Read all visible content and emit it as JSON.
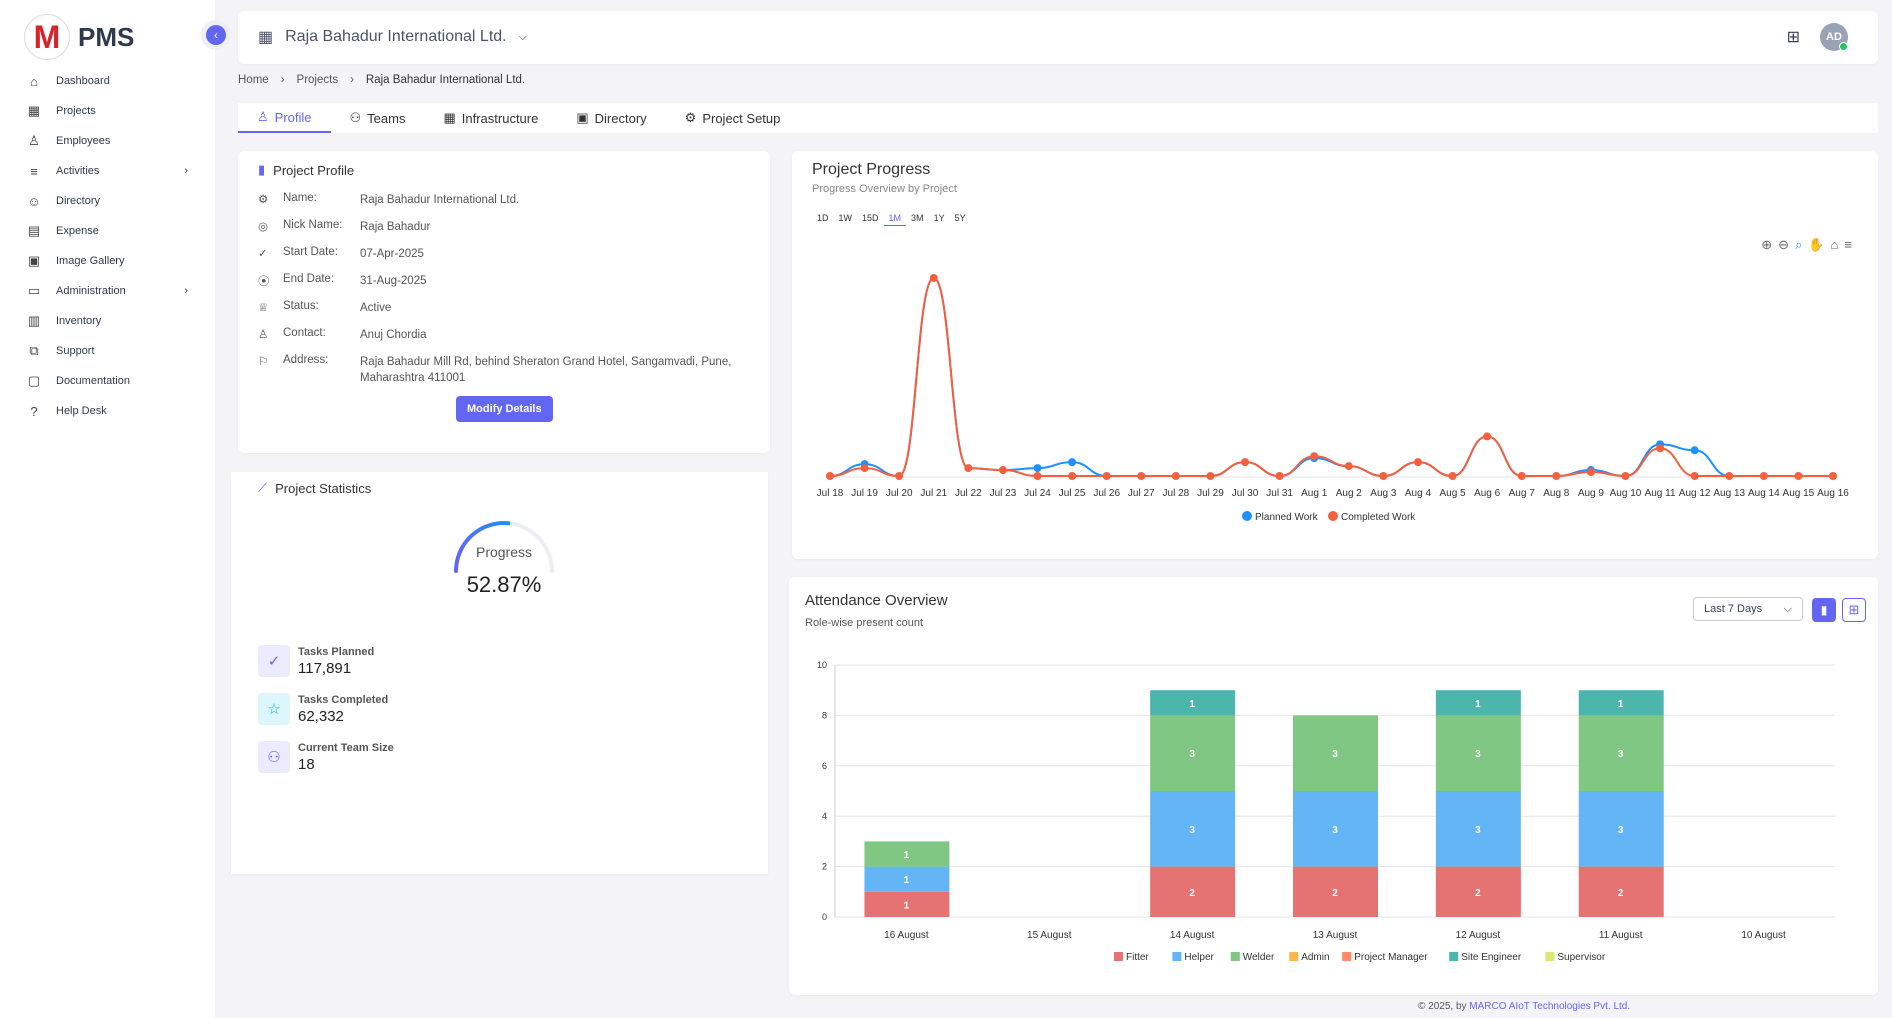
{
  "app": {
    "logo_letter": "M",
    "name": "PMS"
  },
  "sidebar": {
    "items": [
      {
        "label": "Dashboard",
        "icon": "⌂",
        "name": "home"
      },
      {
        "label": "Projects",
        "icon": "▦",
        "name": "building"
      },
      {
        "label": "Employees",
        "icon": "♙",
        "name": "user"
      },
      {
        "label": "Activities",
        "icon": "≡",
        "name": "list",
        "chevron": true
      },
      {
        "label": "Directory",
        "icon": "☺",
        "name": "contacts"
      },
      {
        "label": "Expense",
        "icon": "▤",
        "name": "receipt"
      },
      {
        "label": "Image Gallery",
        "icon": "▣",
        "name": "image"
      },
      {
        "label": "Administration",
        "icon": "▭",
        "name": "archive",
        "chevron": true
      },
      {
        "label": "Inventory",
        "icon": "▥",
        "name": "store"
      },
      {
        "label": "Support",
        "icon": "⧉",
        "name": "support"
      },
      {
        "label": "Documentation",
        "icon": "▢",
        "name": "book"
      },
      {
        "label": "Help Desk",
        "icon": "?",
        "name": "help"
      }
    ]
  },
  "header": {
    "project": "Raja Bahadur International Ltd.",
    "avatar": "AD"
  },
  "breadcrumb": [
    "Home",
    "Projects",
    "Raja Bahadur International Ltd."
  ],
  "tabs": [
    {
      "label": "Profile",
      "icon": "♙",
      "active": true
    },
    {
      "label": "Teams",
      "icon": "⚇"
    },
    {
      "label": "Infrastructure",
      "icon": "▦"
    },
    {
      "label": "Directory",
      "icon": "▣"
    },
    {
      "label": "Project Setup",
      "icon": "⚙"
    }
  ],
  "profile": {
    "title": "Project Profile",
    "rows": [
      {
        "label": "Name:",
        "value": "Raja Bahadur International Ltd.",
        "icon": "⚙"
      },
      {
        "label": "Nick Name:",
        "value": "Raja Bahadur",
        "icon": "◎"
      },
      {
        "label": "Start Date:",
        "value": "07-Apr-2025",
        "icon": "✓"
      },
      {
        "label": "End Date:",
        "value": "31-Aug-2025",
        "icon": "⦿"
      },
      {
        "label": "Status:",
        "value": "Active",
        "icon": "♕"
      },
      {
        "label": "Contact:",
        "value": "Anuj Chordia",
        "icon": "♙"
      },
      {
        "label": "Address:",
        "value": "Raja Bahadur Mill Rd, behind Sheraton Grand Hotel, Sangamvadi, Pune, Maharashtra 411001",
        "icon": "⚐"
      }
    ],
    "button": "Modify Details"
  },
  "statistics": {
    "title": "Project Statistics",
    "gauge_label": "Progress",
    "progress_percent": 52.87,
    "progress_text": "52.87%",
    "items": [
      {
        "label": "Tasks Planned",
        "value": "117,891",
        "icon": "✓",
        "bg": "#ebebfd",
        "fg": "#6366f1"
      },
      {
        "label": "Tasks Completed",
        "value": "62,332",
        "icon": "☆",
        "bg": "#dcf6fb",
        "fg": "#06b6d4"
      },
      {
        "label": "Current Team Size",
        "value": "18",
        "icon": "⚇",
        "bg": "#ebebfd",
        "fg": "#6366f1"
      }
    ]
  },
  "progress": {
    "title": "Project Progress",
    "subtitle": "Progress Overview by Project",
    "ranges": [
      "1D",
      "1W",
      "15D",
      "1M",
      "3M",
      "1Y",
      "5Y"
    ],
    "active_range": "1M"
  },
  "attendance": {
    "title": "Attendance Overview",
    "subtitle": "Role-wise present count",
    "filter": "Last 7 Days"
  },
  "footer": {
    "prefix": "© 2025, by ",
    "company": "MARCO AIoT Technologies Pvt. Ltd."
  },
  "chart_data": [
    {
      "type": "line",
      "x": [
        "Jul 18",
        "Jul 19",
        "Jul 20",
        "Jul 21",
        "Jul 22",
        "Jul 23",
        "Jul 24",
        "Jul 25",
        "Jul 26",
        "Jul 27",
        "Jul 28",
        "Jul 29",
        "Jul 30",
        "Jul 31",
        "Aug 1",
        "Aug 2",
        "Aug 3",
        "Aug 4",
        "Aug 5",
        "Aug 6",
        "Aug 7",
        "Aug 8",
        "Aug 9",
        "Aug 10",
        "Aug 11",
        "Aug 12",
        "Aug 13",
        "Aug 14",
        "Aug 15",
        "Aug 16"
      ],
      "series": [
        {
          "name": "Planned Work",
          "color": "#1e90ff",
          "values": [
            0,
            6,
            0,
            100,
            4,
            3,
            4,
            7,
            0,
            0,
            0,
            0,
            7,
            0,
            9,
            5,
            0,
            7,
            0,
            20,
            0,
            0,
            3,
            0,
            16,
            13,
            0,
            0,
            0,
            0
          ]
        },
        {
          "name": "Completed Work",
          "color": "#f4603e",
          "values": [
            0,
            4,
            0,
            100,
            4,
            3,
            0,
            0,
            0,
            0,
            0,
            0,
            7,
            0,
            10,
            5,
            0,
            7,
            0,
            20,
            0,
            0,
            2,
            0,
            14,
            0,
            0,
            0,
            0,
            0
          ]
        }
      ],
      "legend": "bottom",
      "grid": false
    },
    {
      "type": "bar",
      "stacked": true,
      "categories": [
        "16 August",
        "15 August",
        "14 August",
        "13 August",
        "12 August",
        "11 August",
        "10 August"
      ],
      "ylim": [
        0,
        10
      ],
      "yticks": [
        0,
        2,
        4,
        6,
        8,
        10
      ],
      "series": [
        {
          "name": "Fitter",
          "color": "#e57373",
          "values": [
            1,
            0,
            2,
            2,
            2,
            2,
            0
          ]
        },
        {
          "name": "Helper",
          "color": "#64b5f6",
          "values": [
            1,
            0,
            3,
            3,
            3,
            3,
            0
          ]
        },
        {
          "name": "Welder",
          "color": "#81c784",
          "values": [
            1,
            0,
            3,
            3,
            3,
            3,
            0
          ]
        },
        {
          "name": "Admin",
          "color": "#ffb74d",
          "values": [
            0,
            0,
            0,
            0,
            0,
            0,
            0
          ]
        },
        {
          "name": "Project Manager",
          "color": "#ff8a65",
          "values": [
            0,
            0,
            0,
            0,
            0,
            0,
            0
          ]
        },
        {
          "name": "Site Engineer",
          "color": "#4db6ac",
          "values": [
            0,
            0,
            1,
            0,
            1,
            1,
            0
          ]
        },
        {
          "name": "Supervisor",
          "color": "#dce775",
          "values": [
            0,
            0,
            0,
            0,
            0,
            0,
            0
          ]
        }
      ],
      "legend": "bottom",
      "grid": true
    }
  ]
}
